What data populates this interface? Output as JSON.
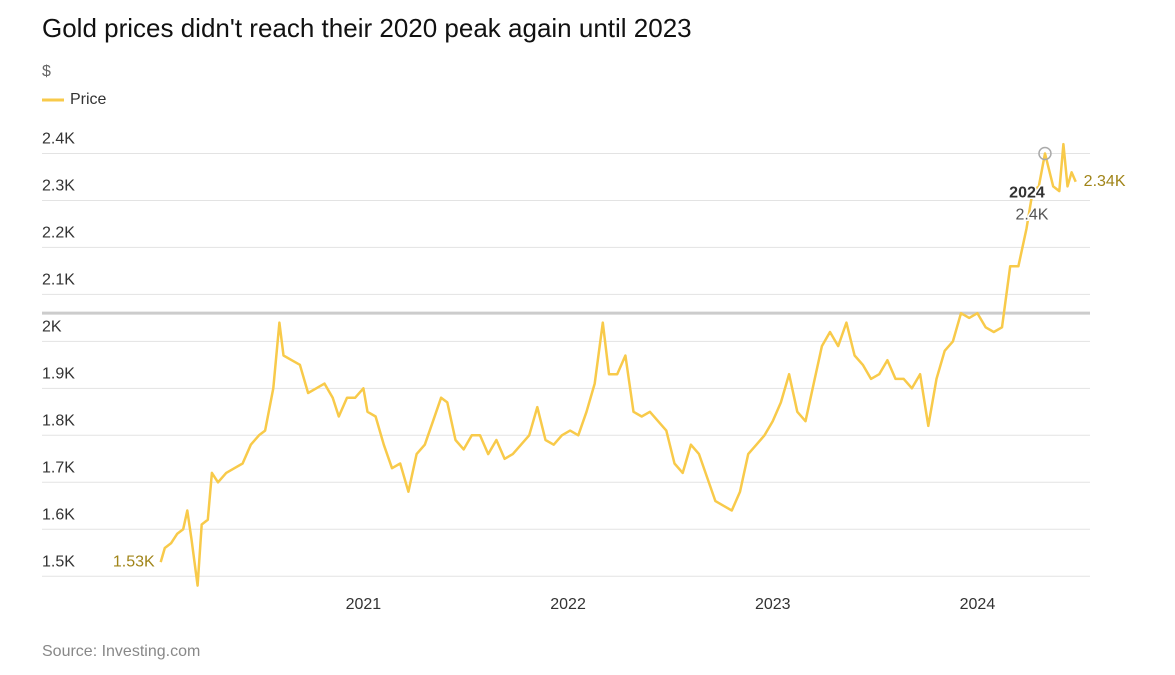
{
  "chart_data": {
    "type": "line",
    "title": "Gold prices didn't reach their 2020 peak again until 2023",
    "y_label": "$",
    "source": "Source: Investing.com",
    "x": [
      2020.01,
      2020.03,
      2020.06,
      2020.09,
      2020.12,
      2020.14,
      2020.16,
      2020.19,
      2020.21,
      2020.24,
      2020.26,
      2020.29,
      2020.33,
      2020.37,
      2020.41,
      2020.45,
      2020.49,
      2020.52,
      2020.56,
      2020.59,
      2020.61,
      2020.65,
      2020.69,
      2020.73,
      2020.77,
      2020.81,
      2020.85,
      2020.88,
      2020.92,
      2020.96,
      2021.0,
      2021.02,
      2021.06,
      2021.1,
      2021.14,
      2021.18,
      2021.22,
      2021.26,
      2021.3,
      2021.34,
      2021.38,
      2021.41,
      2021.45,
      2021.49,
      2021.53,
      2021.57,
      2021.61,
      2021.65,
      2021.69,
      2021.73,
      2021.77,
      2021.81,
      2021.85,
      2021.89,
      2021.93,
      2021.97,
      2022.01,
      2022.05,
      2022.09,
      2022.13,
      2022.17,
      2022.2,
      2022.24,
      2022.28,
      2022.32,
      2022.36,
      2022.4,
      2022.44,
      2022.48,
      2022.52,
      2022.56,
      2022.6,
      2022.64,
      2022.68,
      2022.72,
      2022.76,
      2022.8,
      2022.84,
      2022.88,
      2022.92,
      2022.96,
      2023.0,
      2023.04,
      2023.08,
      2023.12,
      2023.16,
      2023.2,
      2023.24,
      2023.28,
      2023.32,
      2023.36,
      2023.4,
      2023.44,
      2023.48,
      2023.52,
      2023.56,
      2023.6,
      2023.64,
      2023.68,
      2023.72,
      2023.76,
      2023.8,
      2023.84,
      2023.88,
      2023.92,
      2023.96,
      2024.0,
      2024.04,
      2024.08,
      2024.12,
      2024.16,
      2024.2,
      2024.24,
      2024.27,
      2024.3,
      2024.33,
      2024.37,
      2024.4,
      2024.42,
      2024.44,
      2024.46,
      2024.48
    ],
    "series": [
      {
        "name": "Price",
        "color": "#f8ca4a",
        "values": [
          1530,
          1560,
          1570,
          1590,
          1600,
          1640,
          1580,
          1480,
          1610,
          1620,
          1720,
          1700,
          1720,
          1730,
          1740,
          1780,
          1800,
          1810,
          1900,
          2040,
          1970,
          1960,
          1950,
          1890,
          1900,
          1910,
          1880,
          1840,
          1880,
          1880,
          1900,
          1850,
          1840,
          1780,
          1730,
          1740,
          1680,
          1760,
          1780,
          1830,
          1880,
          1870,
          1790,
          1770,
          1800,
          1800,
          1760,
          1790,
          1750,
          1760,
          1780,
          1800,
          1860,
          1790,
          1780,
          1800,
          1810,
          1800,
          1850,
          1910,
          2040,
          1930,
          1930,
          1970,
          1850,
          1840,
          1850,
          1830,
          1810,
          1740,
          1720,
          1780,
          1760,
          1710,
          1660,
          1650,
          1640,
          1680,
          1760,
          1780,
          1800,
          1830,
          1870,
          1930,
          1850,
          1830,
          1910,
          1990,
          2020,
          1990,
          2040,
          1970,
          1950,
          1920,
          1930,
          1960,
          1920,
          1920,
          1900,
          1930,
          1820,
          1920,
          1980,
          2000,
          2060,
          2050,
          2060,
          2030,
          2020,
          2030,
          2160,
          2160,
          2240,
          2320,
          2330,
          2400,
          2330,
          2320,
          2420,
          2330,
          2360,
          2340
        ]
      }
    ],
    "xlim": [
      2019.43,
      2024.55
    ],
    "xticks": [
      2021,
      2022,
      2023,
      2024
    ],
    "ylim": [
      1460,
      2450
    ],
    "yticks": [
      {
        "value": 1500,
        "label": "1.5K"
      },
      {
        "value": 1600,
        "label": "1.6K"
      },
      {
        "value": 1700,
        "label": "1.7K"
      },
      {
        "value": 1800,
        "label": "1.8K"
      },
      {
        "value": 1900,
        "label": "1.9K"
      },
      {
        "value": 2000,
        "label": "2K"
      },
      {
        "value": 2100,
        "label": "2.1K"
      },
      {
        "value": 2200,
        "label": "2.2K"
      },
      {
        "value": 2300,
        "label": "2.3K"
      },
      {
        "value": 2400,
        "label": "2.4K"
      }
    ],
    "grid": true,
    "peak_line": 2060,
    "first_label": {
      "value": 1530,
      "label": "1.53K"
    },
    "last_label": {
      "value": 2340,
      "label": "2.34K"
    },
    "annotation": {
      "x": 2024.33,
      "y": 2400,
      "title": "2024",
      "label": "2.4K"
    }
  }
}
